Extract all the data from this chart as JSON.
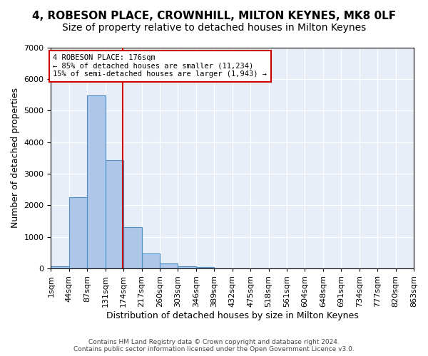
{
  "title": "4, ROBESON PLACE, CROWNHILL, MILTON KEYNES, MK8 0LF",
  "subtitle": "Size of property relative to detached houses in Milton Keynes",
  "xlabel": "Distribution of detached houses by size in Milton Keynes",
  "ylabel": "Number of detached properties",
  "bar_values": [
    75,
    2270,
    5470,
    3440,
    1310,
    470,
    155,
    85,
    50,
    0,
    0,
    0,
    0,
    0,
    0,
    0,
    0,
    0,
    0,
    0
  ],
  "bar_color": "#aec6e8",
  "bar_edge_color": "#4a90c4",
  "x_labels": [
    "1sqm",
    "44sqm",
    "87sqm",
    "131sqm",
    "174sqm",
    "217sqm",
    "260sqm",
    "303sqm",
    "346sqm",
    "389sqm",
    "432sqm",
    "475sqm",
    "518sqm",
    "561sqm",
    "604sqm",
    "648sqm",
    "691sqm",
    "734sqm",
    "777sqm",
    "820sqm",
    "863sqm"
  ],
  "ylim": [
    0,
    7000
  ],
  "yticks": [
    0,
    1000,
    2000,
    3000,
    4000,
    5000,
    6000,
    7000
  ],
  "vline_x": 3.97,
  "vline_color": "#cc0000",
  "annotation_text": "4 ROBESON PLACE: 176sqm\n← 85% of detached houses are smaller (11,234)\n15% of semi-detached houses are larger (1,943) →",
  "annotation_box_color": "#cc0000",
  "footer_text": "Contains HM Land Registry data © Crown copyright and database right 2024.\nContains public sector information licensed under the Open Government Licence v3.0.",
  "bg_color": "#e8eef8",
  "grid_color": "#ffffff",
  "title_fontsize": 11,
  "subtitle_fontsize": 10,
  "axis_label_fontsize": 9,
  "tick_fontsize": 8
}
